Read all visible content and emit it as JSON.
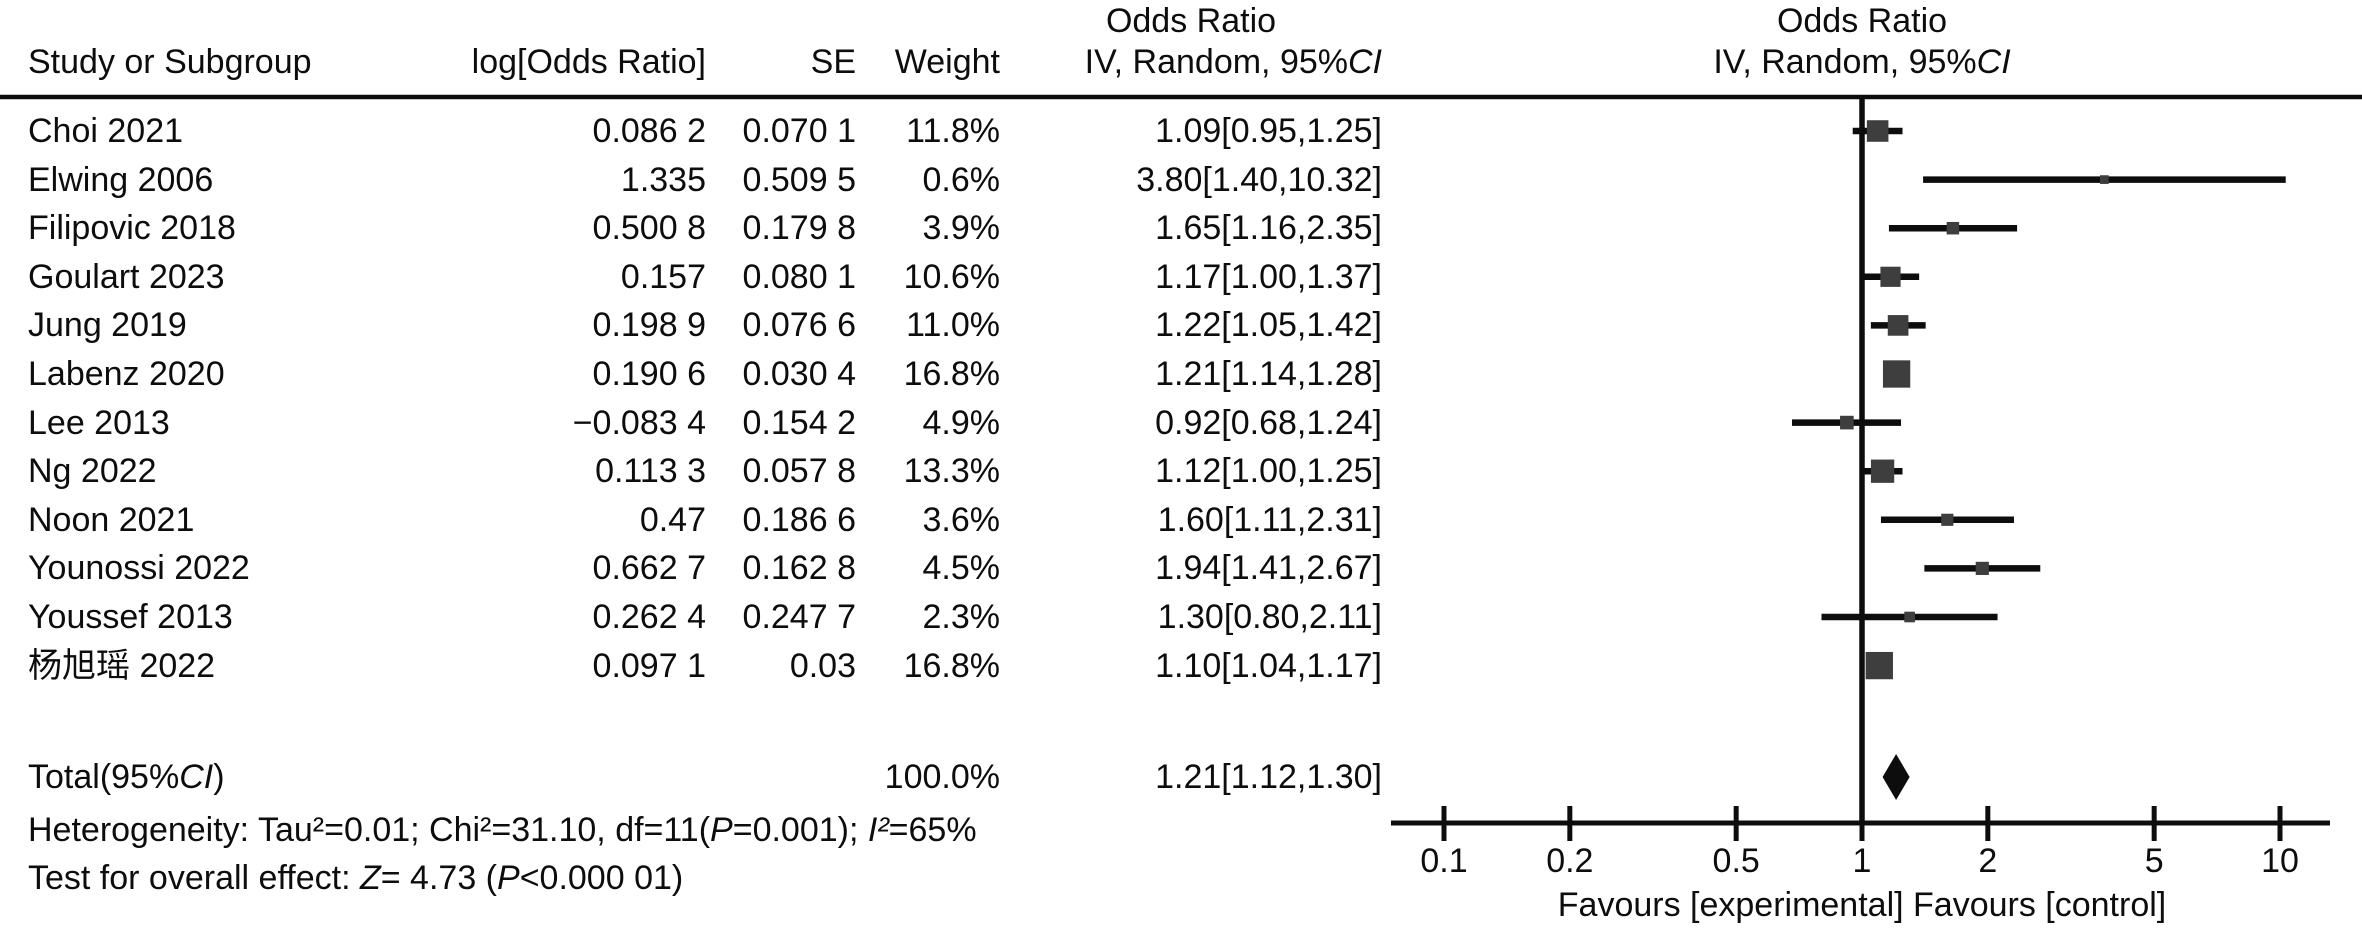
{
  "table": {
    "headers": {
      "or_title": "Odds Ratio",
      "study": "Study or Subgroup",
      "log_or": "log[Odds Ratio]",
      "se": "SE",
      "weight": "Weight",
      "or_ci": [
        {
          "t": "IV, Random, 95%"
        },
        {
          "t": "CI",
          "i": true
        }
      ]
    },
    "rows": [
      {
        "study": "Choi 2021",
        "log_or": "0.086 2",
        "se": "0.070 1",
        "weight": "11.8%",
        "or_ci": "1.09[0.95,1.25]"
      },
      {
        "study": "Elwing 2006",
        "log_or": "1.335",
        "se": "0.509 5",
        "weight": "0.6%",
        "or_ci": "3.80[1.40,10.32]"
      },
      {
        "study": "Filipovic 2018",
        "log_or": "0.500 8",
        "se": "0.179 8",
        "weight": "3.9%",
        "or_ci": "1.65[1.16,2.35]"
      },
      {
        "study": "Goulart 2023",
        "log_or": "0.157",
        "se": "0.080 1",
        "weight": "10.6%",
        "or_ci": "1.17[1.00,1.37]"
      },
      {
        "study": "Jung 2019",
        "log_or": "0.198 9",
        "se": "0.076 6",
        "weight": "11.0%",
        "or_ci": "1.22[1.05,1.42]"
      },
      {
        "study": "Labenz 2020",
        "log_or": "0.190 6",
        "se": "0.030 4",
        "weight": "16.8%",
        "or_ci": "1.21[1.14,1.28]"
      },
      {
        "study": "Lee 2013",
        "log_or": "−0.083 4",
        "se": "0.154 2",
        "weight": "4.9%",
        "or_ci": "0.92[0.68,1.24]"
      },
      {
        "study": "Ng 2022",
        "log_or": "0.113 3",
        "se": "0.057 8",
        "weight": "13.3%",
        "or_ci": "1.12[1.00,1.25]"
      },
      {
        "study": "Noon 2021",
        "log_or": "0.47",
        "se": "0.186 6",
        "weight": "3.6%",
        "or_ci": "1.60[1.11,2.31]"
      },
      {
        "study": "Younossi 2022",
        "log_or": "0.662 7",
        "se": "0.162 8",
        "weight": "4.5%",
        "or_ci": "1.94[1.41,2.67]"
      },
      {
        "study": "Youssef 2013",
        "log_or": "0.262 4",
        "se": "0.247 7",
        "weight": "2.3%",
        "or_ci": "1.30[0.80,2.11]"
      },
      {
        "study": "杨旭瑶 2022",
        "log_or": "0.097 1",
        "se": "0.03",
        "weight": "16.8%",
        "or_ci": "1.10[1.04,1.17]"
      }
    ],
    "total": {
      "label": [
        {
          "t": "Total(95%"
        },
        {
          "t": "CI",
          "i": true
        },
        {
          "t": ")"
        }
      ],
      "weight": "100.0%",
      "or_ci": "1.21[1.12,1.30]"
    }
  },
  "plot_header": {
    "line1": "Odds Ratio",
    "line2": [
      {
        "t": "IV, Random, 95%"
      },
      {
        "t": "CI",
        "i": true
      }
    ]
  },
  "footer": {
    "heterogeneity": [
      {
        "t": "Heterogeneity: Tau²=0.01; Chi²=31.10, df=11("
      },
      {
        "t": "P",
        "i": true
      },
      {
        "t": "=0.001); "
      },
      {
        "t": "I²",
        "i": true
      },
      {
        "t": "=65%"
      }
    ],
    "overall_effect": [
      {
        "t": "Test for overall effect: "
      },
      {
        "t": "Z",
        "i": true
      },
      {
        "t": "= 4.73 ("
      },
      {
        "t": "P",
        "i": true
      },
      {
        "t": "<0.000 01)"
      }
    ]
  },
  "colors": {
    "marker": "#3e3e3e",
    "line": "#0d0d0d",
    "text": "#0d0d0d"
  },
  "chart_data": {
    "type": "forest",
    "x_scale": "log",
    "effect_measure": "Odds Ratio",
    "method": "IV, Random, 95%CI",
    "axis_ticks": [
      0.1,
      0.2,
      0.5,
      1,
      2,
      5,
      10
    ],
    "null_line": 1,
    "xlim": [
      0.07,
      13
    ],
    "caption": "Favours [experimental] Favours [control]",
    "studies": [
      {
        "name": "Choi 2021",
        "log_or": 0.0862,
        "se": 0.0701,
        "weight": 11.8,
        "or": 1.09,
        "ci_low": 0.95,
        "ci_high": 1.25
      },
      {
        "name": "Elwing 2006",
        "log_or": 1.335,
        "se": 0.5095,
        "weight": 0.6,
        "or": 3.8,
        "ci_low": 1.4,
        "ci_high": 10.32
      },
      {
        "name": "Filipovic 2018",
        "log_or": 0.5008,
        "se": 0.1798,
        "weight": 3.9,
        "or": 1.65,
        "ci_low": 1.16,
        "ci_high": 2.35
      },
      {
        "name": "Goulart 2023",
        "log_or": 0.157,
        "se": 0.0801,
        "weight": 10.6,
        "or": 1.17,
        "ci_low": 1.0,
        "ci_high": 1.37
      },
      {
        "name": "Jung 2019",
        "log_or": 0.1989,
        "se": 0.0766,
        "weight": 11.0,
        "or": 1.22,
        "ci_low": 1.05,
        "ci_high": 1.42
      },
      {
        "name": "Labenz 2020",
        "log_or": 0.1906,
        "se": 0.0304,
        "weight": 16.8,
        "or": 1.21,
        "ci_low": 1.14,
        "ci_high": 1.28
      },
      {
        "name": "Lee 2013",
        "log_or": -0.0834,
        "se": 0.1542,
        "weight": 4.9,
        "or": 0.92,
        "ci_low": 0.68,
        "ci_high": 1.24
      },
      {
        "name": "Ng 2022",
        "log_or": 0.1133,
        "se": 0.0578,
        "weight": 13.3,
        "or": 1.12,
        "ci_low": 1.0,
        "ci_high": 1.25
      },
      {
        "name": "Noon 2021",
        "log_or": 0.47,
        "se": 0.1866,
        "weight": 3.6,
        "or": 1.6,
        "ci_low": 1.11,
        "ci_high": 2.31
      },
      {
        "name": "Younossi 2022",
        "log_or": 0.6627,
        "se": 0.1628,
        "weight": 4.5,
        "or": 1.94,
        "ci_low": 1.41,
        "ci_high": 2.67
      },
      {
        "name": "Youssef 2013",
        "log_or": 0.2624,
        "se": 0.2477,
        "weight": 2.3,
        "or": 1.3,
        "ci_low": 0.8,
        "ci_high": 2.11
      },
      {
        "name": "杨旭瑶 2022",
        "log_or": 0.0971,
        "se": 0.03,
        "weight": 16.8,
        "or": 1.1,
        "ci_low": 1.04,
        "ci_high": 1.17
      }
    ],
    "total": {
      "or": 1.21,
      "ci_low": 1.12,
      "ci_high": 1.3,
      "weight": 100.0
    },
    "heterogeneity": {
      "tau2": 0.01,
      "chi2": 31.1,
      "df": 11,
      "p": "0.001",
      "i2": "65%"
    },
    "overall_effect": {
      "z": 4.73,
      "p": "<0.000 01"
    }
  }
}
